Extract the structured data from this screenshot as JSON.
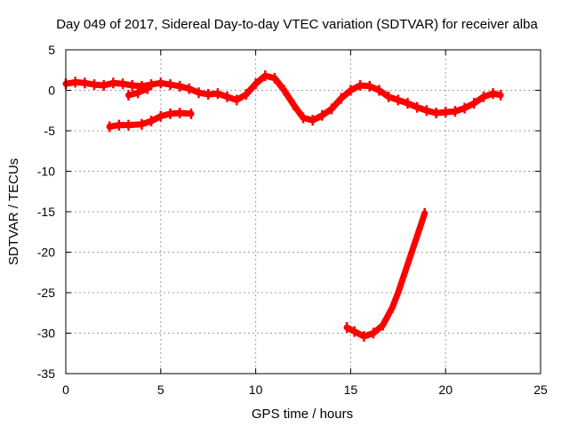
{
  "chart_data": {
    "type": "scatter",
    "title": "Day 049 of 2017, Sidereal Day-to-day VTEC variation (SDTVAR) for receiver alba",
    "xlabel": "GPS time / hours",
    "ylabel": "SDTVAR / TECUs",
    "xlim": [
      0,
      25
    ],
    "ylim": [
      -35,
      5
    ],
    "xticks": [
      0,
      5,
      10,
      15,
      20,
      25
    ],
    "yticks": [
      5,
      0,
      -5,
      -10,
      -15,
      -20,
      -25,
      -30,
      -35
    ],
    "grid": true,
    "legend": "none",
    "series_color": "#ff0000",
    "series": [
      {
        "name": "main-band",
        "points": [
          [
            0,
            0.8
          ],
          [
            0.5,
            1.0
          ],
          [
            1,
            0.9
          ],
          [
            1.5,
            0.7
          ],
          [
            2,
            0.6
          ],
          [
            2.5,
            0.9
          ],
          [
            3,
            0.8
          ],
          [
            3.5,
            0.6
          ],
          [
            4,
            0.5
          ],
          [
            4.5,
            0.7
          ],
          [
            5,
            0.9
          ],
          [
            5.5,
            0.7
          ],
          [
            6,
            0.5
          ],
          [
            6.5,
            0.2
          ],
          [
            7,
            -0.3
          ],
          [
            7.5,
            -0.5
          ],
          [
            8,
            -0.4
          ],
          [
            8.5,
            -0.8
          ],
          [
            9,
            -1.2
          ],
          [
            9.5,
            -0.5
          ],
          [
            10,
            0.8
          ],
          [
            10.5,
            1.8
          ],
          [
            11,
            1.5
          ],
          [
            11.5,
            0
          ],
          [
            12,
            -1.8
          ],
          [
            12.5,
            -3.4
          ],
          [
            13,
            -3.7
          ],
          [
            13.5,
            -3.1
          ],
          [
            14,
            -2.3
          ],
          [
            14.5,
            -1.0
          ],
          [
            15,
            0
          ],
          [
            15.5,
            0.6
          ],
          [
            16,
            0.5
          ],
          [
            16.5,
            0
          ],
          [
            17,
            -0.8
          ],
          [
            17.5,
            -1.2
          ],
          [
            18,
            -1.6
          ],
          [
            18.5,
            -2.1
          ],
          [
            19,
            -2.5
          ],
          [
            19.5,
            -2.8
          ],
          [
            20,
            -2.7
          ],
          [
            20.5,
            -2.6
          ],
          [
            21,
            -2.2
          ],
          [
            21.5,
            -1.6
          ],
          [
            22,
            -0.8
          ],
          [
            22.5,
            -0.4
          ],
          [
            22.9,
            -0.6
          ]
        ]
      },
      {
        "name": "lower-early-arc",
        "points": [
          [
            2.3,
            -4.5
          ],
          [
            2.8,
            -4.3
          ],
          [
            3.3,
            -4.3
          ],
          [
            4,
            -4.2
          ],
          [
            4.5,
            -3.8
          ],
          [
            5,
            -3.2
          ],
          [
            5.5,
            -2.9
          ],
          [
            6,
            -2.8
          ],
          [
            6.6,
            -2.9
          ]
        ]
      },
      {
        "name": "small-segment",
        "points": [
          [
            3.3,
            -0.6
          ],
          [
            3.8,
            -0.3
          ],
          [
            4.3,
            0.2
          ]
        ]
      },
      {
        "name": "steep-rise",
        "points": [
          [
            14.8,
            -29.3
          ],
          [
            15.2,
            -29.8
          ],
          [
            15.7,
            -30.4
          ],
          [
            16.2,
            -30.0
          ],
          [
            16.7,
            -29.0
          ],
          [
            17.2,
            -26.8
          ],
          [
            17.5,
            -25.0
          ],
          [
            18,
            -21.5
          ],
          [
            18.5,
            -18.0
          ],
          [
            18.9,
            -15.2
          ]
        ]
      }
    ]
  }
}
